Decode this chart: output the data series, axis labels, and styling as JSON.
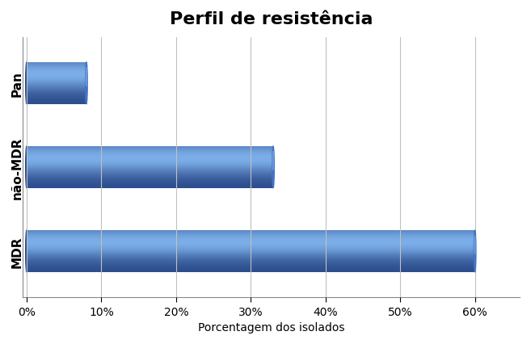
{
  "title": "Perfil de resistência",
  "categories": [
    "MDR",
    "não-MDR",
    "Pan"
  ],
  "values": [
    60,
    33,
    8
  ],
  "xlabel": "Porcentagem dos isolados",
  "xlim": [
    0,
    66
  ],
  "xticks": [
    0,
    10,
    20,
    30,
    40,
    50,
    60
  ],
  "xticklabels": [
    "0%",
    "10%",
    "20%",
    "30%",
    "40%",
    "50%",
    "60%"
  ],
  "bar_color_main": "#4472C4",
  "bar_color_light": "#7BAEE8",
  "bar_color_dark": "#2A4A8A",
  "background_color": "#FFFFFF",
  "grid_color": "#C0C0C0",
  "title_fontsize": 16,
  "label_fontsize": 10,
  "tick_fontsize": 10,
  "bar_height": 0.5,
  "y_label_fontsize": 11
}
